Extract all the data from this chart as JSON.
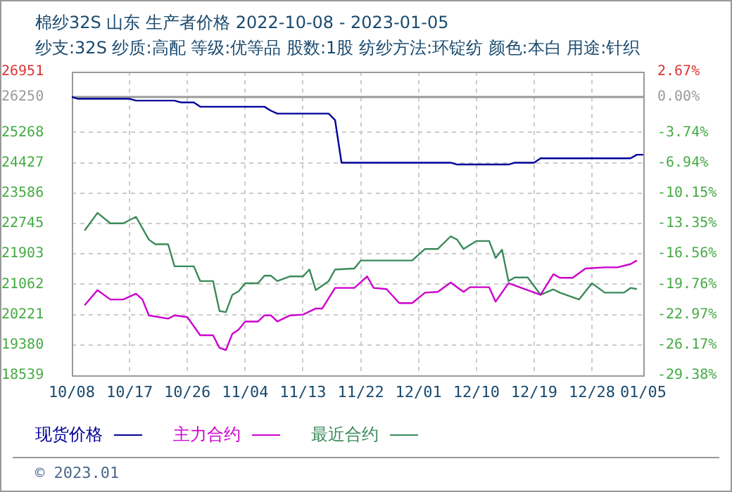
{
  "chart_data": {
    "type": "line",
    "title": "棉纱32S 山东 生产者价格 2022-10-08 - 2023-01-05",
    "subtitle": "纱支:32S 纱质:高配 等级:优等品 股数:1股 纺纱方法:环锭纺 颜色:本白 用途:针织",
    "xlim": [
      "2022-10-08",
      "2023-01-05"
    ],
    "xticks": [
      {
        "value": "2022-10-08",
        "label": "10/08"
      },
      {
        "value": "2022-10-17",
        "label": "10/17"
      },
      {
        "value": "2022-10-26",
        "label": "10/26"
      },
      {
        "value": "2022-11-04",
        "label": "11/04"
      },
      {
        "value": "2022-11-13",
        "label": "11/13"
      },
      {
        "value": "2022-11-22",
        "label": "11/22"
      },
      {
        "value": "2022-12-01",
        "label": "12/01"
      },
      {
        "value": "2022-12-10",
        "label": "12/10"
      },
      {
        "value": "2022-12-19",
        "label": "12/19"
      },
      {
        "value": "2022-12-28",
        "label": "12/28"
      },
      {
        "value": "2023-01-05",
        "label": "01/05"
      }
    ],
    "ylim": [
      18539,
      26951
    ],
    "yticks": [
      18539,
      19380,
      20221,
      21062,
      21903,
      22745,
      23586,
      24427,
      25268,
      26250,
      26951
    ],
    "y2lim": [
      -29.38,
      2.67
    ],
    "y2ticks": [
      {
        "value": -29.38,
        "label": "-29.38%"
      },
      {
        "value": -26.17,
        "label": "-26.17%"
      },
      {
        "value": -22.97,
        "label": "-22.97%"
      },
      {
        "value": -19.76,
        "label": "-19.76%"
      },
      {
        "value": -16.56,
        "label": "-16.56%"
      },
      {
        "value": -13.35,
        "label": "-13.35%"
      },
      {
        "value": -10.15,
        "label": "-10.15%"
      },
      {
        "value": -6.94,
        "label": "-6.94%"
      },
      {
        "value": -3.74,
        "label": "-3.74%"
      },
      {
        "value": 0,
        "label": "0.00%"
      },
      {
        "value": 2.67,
        "label": "2.67%"
      }
    ],
    "ref_lines": [
      {
        "axis": "y",
        "value": 26250,
        "color": "#999999"
      }
    ],
    "grid": true,
    "legend": "bottom",
    "line_style": "solid",
    "marker": "none",
    "annotations": [
      "© 2023.01"
    ],
    "series": [
      {
        "name": "现货价格",
        "color": "#000099",
        "x": [
          "2022-10-08",
          "2022-10-09",
          "2022-10-17",
          "2022-10-18",
          "2022-10-24",
          "2022-10-25",
          "2022-10-27",
          "2022-10-28",
          "2022-11-07",
          "2022-11-08",
          "2022-11-09",
          "2022-11-17",
          "2022-11-18",
          "2022-11-19",
          "2022-12-06",
          "2022-12-07",
          "2022-12-15",
          "2022-12-16",
          "2022-12-19",
          "2022-12-20",
          "2023-01-03",
          "2023-01-04",
          "2023-01-05"
        ],
        "values": [
          26250,
          26200,
          26200,
          26150,
          26150,
          26100,
          26100,
          25980,
          25980,
          25870,
          25790,
          25790,
          25610,
          24430,
          24430,
          24380,
          24380,
          24430,
          24430,
          24550,
          24550,
          24650,
          24650
        ]
      },
      {
        "name": "主力合约",
        "color": "#cc00cc",
        "x": [
          "2022-10-10",
          "2022-10-12",
          "2022-10-14",
          "2022-10-16",
          "2022-10-18",
          "2022-10-19",
          "2022-10-20",
          "2022-10-23",
          "2022-10-24",
          "2022-10-26",
          "2022-10-28",
          "2022-10-30",
          "2022-10-31",
          "2022-11-01",
          "2022-11-02",
          "2022-11-03",
          "2022-11-04",
          "2022-11-06",
          "2022-11-07",
          "2022-11-08",
          "2022-11-09",
          "2022-11-11",
          "2022-11-13",
          "2022-11-15",
          "2022-11-16",
          "2022-11-18",
          "2022-11-21",
          "2022-11-23",
          "2022-11-24",
          "2022-11-26",
          "2022-11-28",
          "2022-11-30",
          "2022-12-02",
          "2022-12-04",
          "2022-12-06",
          "2022-12-08",
          "2022-12-09",
          "2022-12-12",
          "2022-12-13",
          "2022-12-15",
          "2022-12-20",
          "2022-12-22",
          "2022-12-23",
          "2022-12-25",
          "2022-12-27",
          "2022-12-30",
          "2023-01-01",
          "2023-01-03",
          "2023-01-04"
        ],
        "values": [
          20480,
          20900,
          20640,
          20640,
          20800,
          20640,
          20200,
          20110,
          20200,
          20150,
          19650,
          19650,
          19300,
          19240,
          19690,
          19810,
          20030,
          20030,
          20200,
          20200,
          20030,
          20200,
          20220,
          20390,
          20390,
          20960,
          20960,
          21280,
          20960,
          20930,
          20540,
          20540,
          20830,
          20850,
          21110,
          20850,
          20980,
          20980,
          20580,
          21090,
          20770,
          21340,
          21240,
          21240,
          21500,
          21530,
          21530,
          21620,
          21720
        ]
      },
      {
        "name": "最近合约",
        "color": "#3a8a5a",
        "x": [
          "2022-10-10",
          "2022-10-12",
          "2022-10-14",
          "2022-10-16",
          "2022-10-18",
          "2022-10-20",
          "2022-10-21",
          "2022-10-23",
          "2022-10-24",
          "2022-10-27",
          "2022-10-28",
          "2022-10-30",
          "2022-10-31",
          "2022-11-01",
          "2022-11-02",
          "2022-11-03",
          "2022-11-04",
          "2022-11-06",
          "2022-11-07",
          "2022-11-08",
          "2022-11-09",
          "2022-11-11",
          "2022-11-13",
          "2022-11-14",
          "2022-11-15",
          "2022-11-17",
          "2022-11-18",
          "2022-11-21",
          "2022-11-22",
          "2022-11-30",
          "2022-12-02",
          "2022-12-04",
          "2022-12-06",
          "2022-12-07",
          "2022-12-08",
          "2022-12-10",
          "2022-12-12",
          "2022-12-13",
          "2022-12-14",
          "2022-12-15",
          "2022-12-16",
          "2022-12-18",
          "2022-12-20",
          "2022-12-22",
          "2022-12-23",
          "2022-12-26",
          "2022-12-28",
          "2022-12-30",
          "2023-01-02",
          "2023-01-03",
          "2023-01-04"
        ],
        "values": [
          22550,
          23040,
          22750,
          22750,
          22930,
          22300,
          22170,
          22170,
          21560,
          21560,
          21150,
          21150,
          20320,
          20290,
          20770,
          20870,
          21090,
          21090,
          21300,
          21300,
          21150,
          21280,
          21280,
          21470,
          20900,
          21150,
          21470,
          21500,
          21720,
          21720,
          22040,
          22040,
          22390,
          22300,
          22040,
          22260,
          22260,
          21790,
          22020,
          21150,
          21250,
          21250,
          20770,
          20920,
          20830,
          20640,
          21090,
          20830,
          20830,
          20960,
          20930
        ]
      }
    ]
  }
}
